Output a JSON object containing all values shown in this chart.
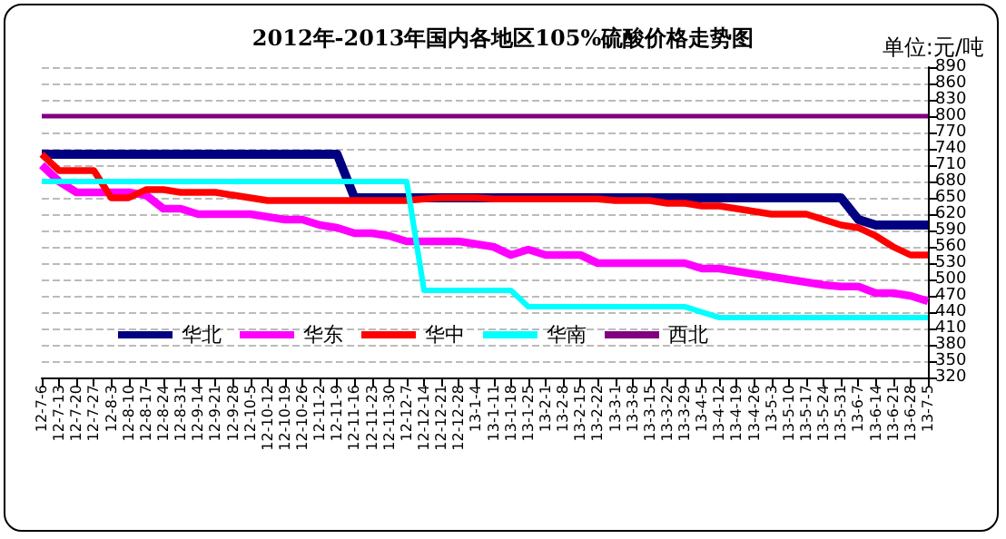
{
  "chart_data": {
    "type": "line",
    "title": "2012年-2013年国内各地区105%硫酸价格走势图",
    "annotations": [
      "单位:元/吨"
    ],
    "categories": [
      "12-7-6",
      "12-7-13",
      "12-7-20",
      "12-7-27",
      "12-8-3",
      "12-8-10",
      "12-8-17",
      "12-8-24",
      "12-8-31",
      "12-9-14",
      "12-9-21",
      "12-9-28",
      "12-10-5",
      "12-10-12",
      "12-10-19",
      "12-10-26",
      "12-11-2",
      "12-11-9",
      "12-11-16",
      "12-11-23",
      "12-11-30",
      "12-12-7",
      "12-12-14",
      "12-12-21",
      "12-12-28",
      "13-1-4",
      "13-1-11",
      "13-1-18",
      "13-1-25",
      "13-2-1",
      "13-2-8",
      "13-2-15",
      "13-2-22",
      "13-3-1",
      "13-3-8",
      "13-3-15",
      "13-3-22",
      "13-3-29",
      "13-4-5",
      "13-4-12",
      "13-4-19",
      "13-4-26",
      "13-5-3",
      "13-5-10",
      "13-5-17",
      "13-5-24",
      "13-5-31",
      "13-6-7",
      "13-6-14",
      "13-6-21",
      "13-6-28",
      "13-7-5"
    ],
    "series": [
      {
        "name": "华北",
        "color": "#000080",
        "values": [
          730,
          730,
          730,
          730,
          730,
          730,
          730,
          730,
          730,
          730,
          730,
          730,
          730,
          730,
          730,
          730,
          730,
          730,
          650,
          650,
          650,
          650,
          650,
          650,
          650,
          650,
          650,
          650,
          650,
          650,
          650,
          650,
          650,
          650,
          650,
          650,
          650,
          650,
          650,
          650,
          650,
          650,
          650,
          650,
          650,
          650,
          650,
          610,
          600,
          600,
          600,
          600
        ]
      },
      {
        "name": "华东",
        "color": "#ff00ff",
        "values": [
          710,
          680,
          660,
          660,
          660,
          660,
          655,
          630,
          630,
          620,
          620,
          620,
          620,
          615,
          610,
          610,
          600,
          595,
          585,
          585,
          580,
          570,
          570,
          570,
          570,
          565,
          560,
          545,
          555,
          545,
          545,
          545,
          530,
          530,
          530,
          530,
          530,
          530,
          520,
          520,
          515,
          510,
          505,
          500,
          495,
          490,
          487,
          487,
          475,
          475,
          470,
          460
        ]
      },
      {
        "name": "华中",
        "color": "#ff0000",
        "values": [
          730,
          700,
          700,
          700,
          650,
          650,
          665,
          665,
          660,
          660,
          660,
          655,
          650,
          645,
          645,
          645,
          645,
          645,
          645,
          645,
          645,
          645,
          648,
          650,
          650,
          650,
          648,
          648,
          648,
          648,
          648,
          648,
          648,
          645,
          645,
          645,
          640,
          640,
          635,
          635,
          630,
          625,
          620,
          620,
          620,
          610,
          600,
          595,
          580,
          560,
          545,
          545
        ]
      },
      {
        "name": "华南",
        "color": "#00ffff",
        "values": [
          680,
          680,
          680,
          680,
          680,
          680,
          680,
          680,
          680,
          680,
          680,
          680,
          680,
          680,
          680,
          680,
          680,
          680,
          680,
          680,
          680,
          680,
          480,
          480,
          480,
          480,
          480,
          480,
          450,
          450,
          450,
          450,
          450,
          450,
          450,
          450,
          450,
          450,
          440,
          430,
          430,
          430,
          430,
          430,
          430,
          430,
          430,
          430,
          430,
          430,
          430,
          430
        ]
      },
      {
        "name": "西北",
        "color": "#800080",
        "values": [
          800,
          800,
          800,
          800,
          800,
          800,
          800,
          800,
          800,
          800,
          800,
          800,
          800,
          800,
          800,
          800,
          800,
          800,
          800,
          800,
          800,
          800,
          800,
          800,
          800,
          800,
          800,
          800,
          800,
          800,
          800,
          800,
          800,
          800,
          800,
          800,
          800,
          800,
          800,
          800,
          800,
          800,
          800,
          800,
          800,
          800,
          800,
          800,
          800,
          800,
          800,
          800
        ]
      }
    ],
    "ylim": [
      320,
      890
    ],
    "yticks": [
      320,
      350,
      380,
      410,
      440,
      470,
      500,
      530,
      560,
      590,
      620,
      650,
      680,
      710,
      740,
      770,
      800,
      830,
      860,
      890
    ],
    "grid": "y",
    "legend": "bottom",
    "marker": "none",
    "line_style": "solid"
  }
}
